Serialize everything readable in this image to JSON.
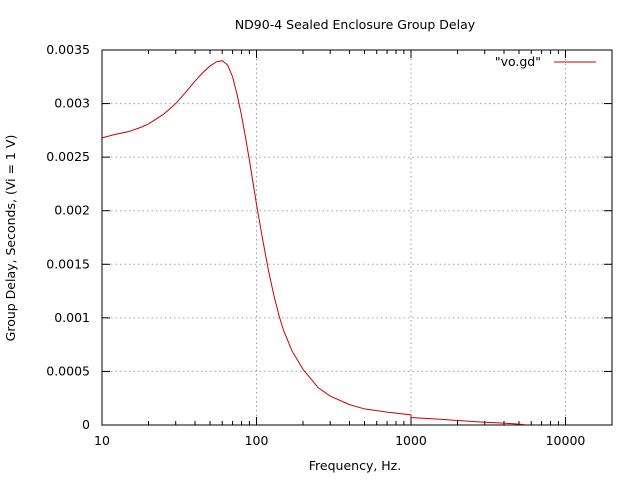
{
  "chart_data": {
    "type": "line",
    "title": "ND90-4 Sealed Enclosure Group Delay",
    "xlabel": "Frequency, Hz.",
    "ylabel": "Group Delay, Seconds, (Vi = 1 V)",
    "x_scale": "log",
    "xlim": [
      10,
      20000
    ],
    "ylim": [
      0,
      0.0035
    ],
    "x_ticks": [
      {
        "value": 10,
        "label": "10"
      },
      {
        "value": 100,
        "label": "100"
      },
      {
        "value": 1000,
        "label": "1000"
      },
      {
        "value": 10000,
        "label": "10000"
      }
    ],
    "y_ticks": [
      {
        "value": 0,
        "label": "0"
      },
      {
        "value": 0.0005,
        "label": "0.0005"
      },
      {
        "value": 0.001,
        "label": "0.001"
      },
      {
        "value": 0.0015,
        "label": "0.0015"
      },
      {
        "value": 0.002,
        "label": "0.002"
      },
      {
        "value": 0.0025,
        "label": "0.0025"
      },
      {
        "value": 0.003,
        "label": "0.003"
      },
      {
        "value": 0.0035,
        "label": "0.0035"
      }
    ],
    "grid": true,
    "legend": "top-right",
    "series": [
      {
        "name": "\"vo.gd\"",
        "color": "#cc0000",
        "x": [
          10,
          12,
          15,
          18,
          20,
          25,
          30,
          35,
          40,
          45,
          50,
          55,
          60,
          65,
          70,
          75,
          80,
          85,
          90,
          95,
          100,
          110,
          120,
          130,
          140,
          150,
          170,
          200,
          250,
          300,
          400,
          500,
          700,
          1000,
          1000,
          1500,
          2000,
          3000,
          4000,
          5000,
          5500
        ],
        "y": [
          0.00268,
          0.00271,
          0.00274,
          0.00278,
          0.00281,
          0.0029,
          0.003,
          0.00311,
          0.00321,
          0.00329,
          0.00335,
          0.00339,
          0.0034,
          0.00336,
          0.00325,
          0.00308,
          0.00289,
          0.00268,
          0.00247,
          0.00226,
          0.00206,
          0.00172,
          0.00143,
          0.0012,
          0.00102,
          0.00088,
          0.00069,
          0.00052,
          0.00035,
          0.00027,
          0.00019,
          0.00015,
          0.00012,
          9.5e-05,
          7e-05,
          5.5e-05,
          4.2e-05,
          2.6e-05,
          1.7e-05,
          8e-06,
          2e-06
        ]
      }
    ]
  }
}
